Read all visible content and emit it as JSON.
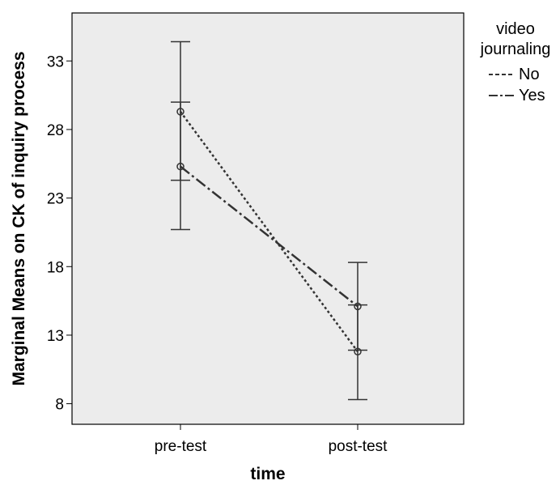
{
  "chart_data": {
    "type": "line",
    "xlabel": "time",
    "ylabel": "Marginal Means on CK of inquiry process",
    "categories": [
      "pre-test",
      "post-test"
    ],
    "ylim": [
      6.5,
      36.5
    ],
    "yticks": [
      8,
      13,
      18,
      23,
      28,
      33
    ],
    "legend": {
      "title_line1": "video",
      "title_line2": "journaling",
      "position": "right"
    },
    "series": [
      {
        "name": "No",
        "style": "dotted",
        "values": [
          29.3,
          11.8
        ],
        "ci_lower": [
          24.3,
          8.3
        ],
        "ci_upper": [
          34.4,
          15.2
        ]
      },
      {
        "name": "Yes",
        "style": "dash-dot",
        "values": [
          25.3,
          15.1
        ],
        "ci_lower": [
          20.7,
          11.9
        ],
        "ci_upper": [
          30.0,
          18.3
        ]
      }
    ],
    "grid": false,
    "background": "#ececec",
    "line_color": "#333333"
  }
}
